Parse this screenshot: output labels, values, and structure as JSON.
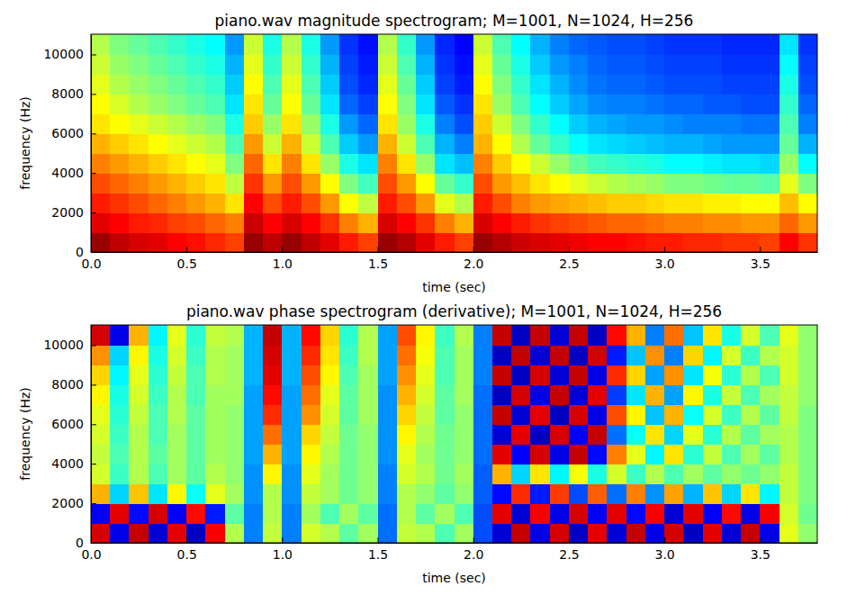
{
  "chart_data": [
    {
      "type": "heatmap",
      "title": "piano.wav magnitude spectrogram; M=1001, N=1024, H=256",
      "x_label": "time (sec)",
      "y_label": "frequency (Hz)",
      "xlim": [
        0,
        3.8
      ],
      "xticks": [
        {
          "value": 0,
          "label": "0.0"
        },
        0.5,
        {
          "value": 1,
          "label": "1.0"
        },
        1.5,
        {
          "value": 2,
          "label": "2.0"
        },
        2.5,
        {
          "value": 3,
          "label": "3.0"
        },
        3.5
      ],
      "ylim": [
        0,
        11025
      ],
      "yticks": [
        0,
        2000,
        4000,
        6000,
        8000,
        10000
      ],
      "zlim": [
        -100,
        -20
      ],
      "x_bins": [
        0,
        0.1,
        0.2,
        0.3,
        0.4,
        0.5,
        0.6,
        0.7,
        0.8,
        0.9,
        1.0,
        1.1,
        1.2,
        1.3,
        1.4,
        1.5,
        1.6,
        1.7,
        1.8,
        1.9,
        2.0,
        2.1,
        2.2,
        2.3,
        2.4,
        2.5,
        2.6,
        2.7,
        2.8,
        2.9,
        3.0,
        3.1,
        3.2,
        3.3,
        3.4,
        3.5,
        3.6,
        3.7,
        3.8
      ],
      "y_bins": [
        0,
        1000,
        2000,
        3000,
        4000,
        5000,
        6000,
        7000,
        8000,
        9000,
        10000,
        11025
      ],
      "z": [
        [
          -22,
          -25,
          -27,
          -28,
          -30,
          -31,
          -33,
          -35,
          -22,
          -25,
          -22,
          -25,
          -28,
          -32,
          -35,
          -22,
          -24,
          -28,
          -32,
          -35,
          -22,
          -24,
          -26,
          -27,
          -28,
          -29,
          -30,
          -30,
          -31,
          -32,
          -32,
          -33,
          -33,
          -34,
          -34,
          -35,
          -30,
          -34
        ],
        [
          -28,
          -30,
          -32,
          -33,
          -35,
          -36,
          -38,
          -40,
          -26,
          -30,
          -27,
          -30,
          -34,
          -40,
          -44,
          -27,
          -30,
          -34,
          -40,
          -44,
          -27,
          -30,
          -32,
          -34,
          -35,
          -36,
          -37,
          -38,
          -38,
          -39,
          -40,
          -40,
          -41,
          -41,
          -42,
          -42,
          -38,
          -42
        ],
        [
          -32,
          -34,
          -36,
          -38,
          -40,
          -42,
          -44,
          -48,
          -30,
          -36,
          -32,
          -36,
          -42,
          -50,
          -55,
          -32,
          -36,
          -42,
          -52,
          -56,
          -32,
          -36,
          -40,
          -42,
          -43,
          -44,
          -45,
          -46,
          -46,
          -47,
          -48,
          -48,
          -49,
          -49,
          -50,
          -50,
          -45,
          -50
        ],
        [
          -36,
          -38,
          -40,
          -42,
          -44,
          -46,
          -48,
          -55,
          -34,
          -42,
          -36,
          -42,
          -50,
          -60,
          -65,
          -36,
          -42,
          -50,
          -62,
          -66,
          -36,
          -42,
          -45,
          -48,
          -50,
          -52,
          -54,
          -56,
          -57,
          -58,
          -60,
          -60,
          -61,
          -62,
          -62,
          -63,
          -52,
          -60
        ],
        [
          -40,
          -42,
          -44,
          -46,
          -48,
          -50,
          -52,
          -60,
          -38,
          -48,
          -40,
          -48,
          -58,
          -68,
          -72,
          -40,
          -48,
          -58,
          -72,
          -75,
          -40,
          -46,
          -50,
          -54,
          -58,
          -62,
          -65,
          -66,
          -67,
          -68,
          -70,
          -70,
          -71,
          -72,
          -72,
          -73,
          -58,
          -70
        ],
        [
          -44,
          -46,
          -48,
          -50,
          -52,
          -54,
          -56,
          -64,
          -42,
          -54,
          -44,
          -54,
          -64,
          -74,
          -78,
          -44,
          -54,
          -64,
          -76,
          -80,
          -44,
          -50,
          -56,
          -62,
          -66,
          -70,
          -72,
          -73,
          -74,
          -75,
          -76,
          -76,
          -77,
          -78,
          -78,
          -78,
          -62,
          -76
        ],
        [
          -48,
          -50,
          -52,
          -54,
          -56,
          -58,
          -60,
          -68,
          -46,
          -58,
          -48,
          -58,
          -68,
          -78,
          -82,
          -48,
          -58,
          -68,
          -80,
          -84,
          -46,
          -54,
          -60,
          -66,
          -70,
          -74,
          -76,
          -77,
          -78,
          -78,
          -79,
          -80,
          -80,
          -80,
          -81,
          -81,
          -64,
          -80
        ],
        [
          -50,
          -53,
          -56,
          -58,
          -60,
          -62,
          -64,
          -72,
          -48,
          -62,
          -50,
          -62,
          -72,
          -82,
          -85,
          -50,
          -60,
          -72,
          -83,
          -86,
          -48,
          -58,
          -64,
          -70,
          -74,
          -77,
          -79,
          -80,
          -80,
          -81,
          -82,
          -82,
          -83,
          -83,
          -84,
          -84,
          -66,
          -82
        ],
        [
          -52,
          -56,
          -58,
          -60,
          -62,
          -64,
          -66,
          -74,
          -50,
          -64,
          -52,
          -64,
          -74,
          -84,
          -87,
          -52,
          -62,
          -74,
          -85,
          -88,
          -50,
          -60,
          -66,
          -72,
          -76,
          -79,
          -81,
          -82,
          -82,
          -83,
          -84,
          -84,
          -84,
          -85,
          -85,
          -85,
          -68,
          -84
        ],
        [
          -54,
          -58,
          -60,
          -62,
          -64,
          -66,
          -68,
          -76,
          -52,
          -66,
          -54,
          -66,
          -76,
          -85,
          -88,
          -54,
          -64,
          -76,
          -86,
          -89,
          -52,
          -62,
          -68,
          -74,
          -78,
          -80,
          -82,
          -83,
          -83,
          -84,
          -85,
          -85,
          -85,
          -86,
          -86,
          -86,
          -70,
          -85
        ],
        [
          -56,
          -60,
          -62,
          -64,
          -66,
          -68,
          -70,
          -78,
          -54,
          -68,
          -56,
          -68,
          -78,
          -86,
          -89,
          -56,
          -66,
          -78,
          -87,
          -90,
          -54,
          -64,
          -70,
          -76,
          -80,
          -82,
          -83,
          -84,
          -84,
          -85,
          -86,
          -86,
          -86,
          -87,
          -87,
          -87,
          -72,
          -86
        ]
      ]
    },
    {
      "type": "heatmap",
      "title": "piano.wav phase spectrogram (derivative); M=1001, N=1024, H=256",
      "x_label": "time (sec)",
      "y_label": "frequency (Hz)",
      "xlim": [
        0,
        3.8
      ],
      "xticks": [
        {
          "value": 0,
          "label": "0.0"
        },
        0.5,
        {
          "value": 1,
          "label": "1.0"
        },
        1.5,
        {
          "value": 2,
          "label": "2.0"
        },
        2.5,
        {
          "value": 3,
          "label": "3.0"
        },
        3.5
      ],
      "ylim": [
        0,
        11025
      ],
      "yticks": [
        0,
        2000,
        4000,
        6000,
        8000,
        10000
      ],
      "zlim": [
        -3,
        3
      ],
      "x_bins": [
        0,
        0.1,
        0.2,
        0.3,
        0.4,
        0.5,
        0.6,
        0.7,
        0.8,
        0.9,
        1.0,
        1.1,
        1.2,
        1.3,
        1.4,
        1.5,
        1.6,
        1.7,
        1.8,
        1.9,
        2.0,
        2.1,
        2.2,
        2.3,
        2.4,
        2.5,
        2.6,
        2.7,
        2.8,
        2.9,
        3.0,
        3.1,
        3.2,
        3.3,
        3.4,
        3.5,
        3.6,
        3.7,
        3.8
      ],
      "y_bins": [
        0,
        1000,
        2000,
        3000,
        4000,
        5000,
        6000,
        7000,
        8000,
        9000,
        10000,
        11025
      ],
      "z": [
        [
          2.5,
          -2.4,
          2.6,
          -2.5,
          2.4,
          -2.6,
          2.3,
          0.3,
          -1.5,
          0.4,
          -1.5,
          0.5,
          0.3,
          -0.2,
          0.2,
          -1.6,
          0.4,
          0.3,
          -0.3,
          0.2,
          -1.8,
          -2.5,
          2.6,
          -2.4,
          2.5,
          -2.6,
          2.4,
          -2.5,
          2.6,
          -2.4,
          2.5,
          -2.6,
          2.4,
          -2.5,
          2.6,
          -2.4,
          0.6,
          0.1
        ],
        [
          -2.3,
          2.4,
          -2.2,
          2.5,
          -2.3,
          2.2,
          -2.1,
          -0.2,
          -1.5,
          0.3,
          -1.5,
          0.2,
          -0.3,
          0.2,
          -0.2,
          -1.6,
          0.3,
          -0.2,
          0.2,
          -0.3,
          -1.8,
          2.4,
          -2.5,
          2.3,
          -2.4,
          2.5,
          -2.3,
          2.4,
          -2.2,
          2.3,
          -2.5,
          2.4,
          -2.3,
          2.2,
          -2.4,
          2.3,
          0.5,
          -0.1
        ],
        [
          1.2,
          -1.0,
          1.1,
          -0.9,
          0.8,
          -0.7,
          0.6,
          0.2,
          -1.4,
          0.3,
          -1.4,
          0.4,
          0.2,
          -0.1,
          0.1,
          -1.5,
          0.3,
          0.1,
          -0.2,
          0.1,
          -1.7,
          -2.2,
          2.0,
          -2.1,
          1.9,
          -1.8,
          1.7,
          -1.6,
          1.5,
          -1.4,
          1.3,
          -1.2,
          1.1,
          -1.0,
          0.9,
          -0.8,
          0.4,
          0.0
        ],
        [
          0.5,
          -0.4,
          0.3,
          -0.3,
          0.2,
          -0.2,
          0.3,
          0.1,
          -1.4,
          0.8,
          -1.4,
          0.6,
          0.2,
          -0.1,
          0.1,
          -1.5,
          0.5,
          0.3,
          -0.1,
          0.2,
          -1.7,
          1.2,
          -1.0,
          0.9,
          -0.8,
          0.7,
          -0.6,
          0.5,
          -0.4,
          0.3,
          -0.3,
          0.2,
          -0.2,
          0.1,
          -0.1,
          0.1,
          0.4,
          0.0
        ],
        [
          0.4,
          -0.3,
          0.3,
          -0.2,
          0.2,
          -0.2,
          0.2,
          0.1,
          -1.3,
          1.2,
          -1.3,
          0.8,
          0.3,
          -0.1,
          0.1,
          -1.4,
          0.6,
          0.2,
          -0.1,
          0.1,
          -1.6,
          2.4,
          -2.3,
          2.5,
          -2.4,
          2.6,
          -2.2,
          1.5,
          0.6,
          -0.8,
          0.9,
          -0.5,
          0.4,
          -0.3,
          0.2,
          -0.2,
          0.3,
          0.0
        ],
        [
          0.5,
          -0.4,
          0.3,
          -0.3,
          0.2,
          -0.2,
          0.2,
          0.1,
          -1.3,
          1.6,
          -1.3,
          1.0,
          0.4,
          -0.1,
          0.1,
          -1.4,
          0.8,
          0.3,
          -0.1,
          0.1,
          -1.6,
          -2.5,
          2.4,
          -2.6,
          2.5,
          -2.3,
          2.6,
          -1.6,
          -0.7,
          0.9,
          -1.0,
          0.6,
          -0.5,
          0.3,
          -0.2,
          0.2,
          0.3,
          0.0
        ],
        [
          0.6,
          -0.5,
          0.4,
          -0.3,
          0.3,
          -0.2,
          0.2,
          0.1,
          -1.3,
          2.0,
          -1.3,
          1.4,
          0.5,
          -0.2,
          0.2,
          -1.4,
          1.0,
          0.4,
          -0.2,
          0.1,
          -1.6,
          2.6,
          -2.5,
          2.4,
          -2.6,
          2.5,
          -2.4,
          1.8,
          0.8,
          -1.1,
          1.2,
          -0.7,
          0.5,
          -0.4,
          0.3,
          -0.2,
          0.4,
          0.0
        ],
        [
          0.8,
          -0.6,
          0.5,
          -0.4,
          0.3,
          -0.3,
          0.2,
          0.2,
          -1.3,
          2.2,
          -1.3,
          1.6,
          0.6,
          -0.2,
          0.2,
          -1.4,
          1.2,
          0.5,
          -0.2,
          0.2,
          -1.6,
          -2.6,
          2.5,
          -2.4,
          2.6,
          -2.5,
          2.4,
          -1.9,
          -0.9,
          1.2,
          -1.3,
          0.8,
          -0.6,
          0.4,
          -0.3,
          0.2,
          0.4,
          0.1
        ],
        [
          1.0,
          -0.8,
          0.6,
          -0.5,
          0.4,
          -0.3,
          0.3,
          0.2,
          -1.2,
          2.4,
          -1.2,
          1.8,
          0.8,
          -0.3,
          0.2,
          -1.3,
          1.4,
          0.6,
          -0.3,
          0.2,
          -1.5,
          2.6,
          -2.6,
          2.5,
          -2.5,
          2.6,
          -2.4,
          2.0,
          1.0,
          -1.3,
          1.4,
          -0.9,
          0.7,
          -0.5,
          0.3,
          -0.3,
          0.5,
          0.1
        ],
        [
          1.4,
          -1.0,
          0.8,
          -0.6,
          0.5,
          -0.4,
          0.3,
          0.2,
          -1.2,
          2.5,
          -1.2,
          2.0,
          0.9,
          -0.4,
          0.3,
          -1.3,
          1.6,
          0.7,
          -0.3,
          0.2,
          -1.5,
          -2.6,
          2.6,
          -2.5,
          2.6,
          -2.6,
          2.5,
          -2.1,
          -1.1,
          1.4,
          -1.5,
          1.0,
          -0.8,
          0.5,
          -0.4,
          0.3,
          0.5,
          0.1
        ],
        [
          2.5,
          -2.4,
          1.2,
          -0.8,
          0.6,
          -0.5,
          0.4,
          0.3,
          -1.2,
          2.6,
          -1.2,
          2.2,
          1.0,
          -0.5,
          0.3,
          -1.3,
          1.8,
          0.8,
          -0.4,
          0.3,
          -1.5,
          2.6,
          -2.6,
          2.6,
          -2.5,
          2.6,
          -2.6,
          2.2,
          1.2,
          -1.5,
          1.6,
          -1.1,
          0.9,
          -0.6,
          0.5,
          -0.3,
          0.6,
          0.1
        ]
      ]
    }
  ]
}
